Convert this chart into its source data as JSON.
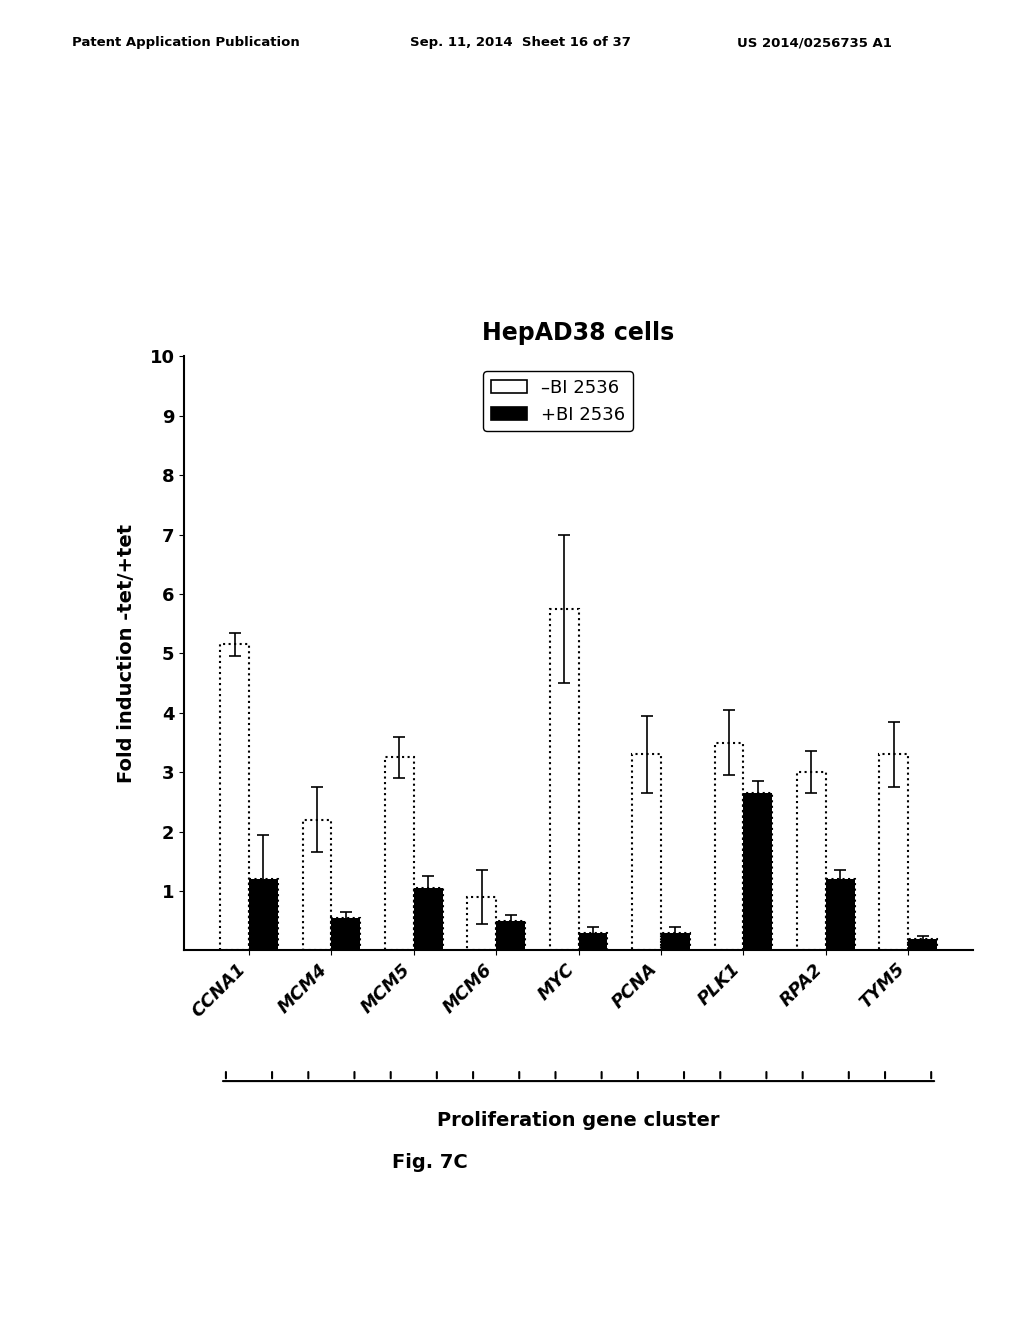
{
  "title": "HepAD38 cells",
  "ylabel": "Fold induction -tet/+tet",
  "xlabel_bottom": "Proliferation gene cluster",
  "categories": [
    "CCNA1",
    "MCM4",
    "MCM5",
    "MCM6",
    "MYC",
    "PCNA",
    "PLK1",
    "RPA2",
    "TYM5"
  ],
  "bar_white_values": [
    5.15,
    2.2,
    3.25,
    0.9,
    5.75,
    3.3,
    3.5,
    3.0,
    3.3
  ],
  "bar_black_values": [
    1.2,
    0.55,
    1.05,
    0.5,
    0.3,
    0.3,
    2.65,
    1.2,
    0.2
  ],
  "bar_white_errors": [
    0.2,
    0.55,
    0.35,
    0.45,
    1.25,
    0.65,
    0.55,
    0.35,
    0.55
  ],
  "bar_black_errors": [
    0.75,
    0.1,
    0.2,
    0.1,
    0.1,
    0.1,
    0.2,
    0.15,
    0.05
  ],
  "ylim": [
    0,
    10
  ],
  "yticks": [
    1,
    2,
    3,
    4,
    5,
    6,
    7,
    8,
    9,
    10
  ],
  "legend_labels": [
    "–BI 2536",
    "+BI 2536"
  ],
  "fig_width": 10.24,
  "fig_height": 13.2,
  "background_color": "#ffffff",
  "header_left": "Patent Application Publication",
  "header_mid": "Sep. 11, 2014  Sheet 16 of 37",
  "header_right": "US 2014/0256735 A1",
  "fig_caption": "Fig. 7C"
}
